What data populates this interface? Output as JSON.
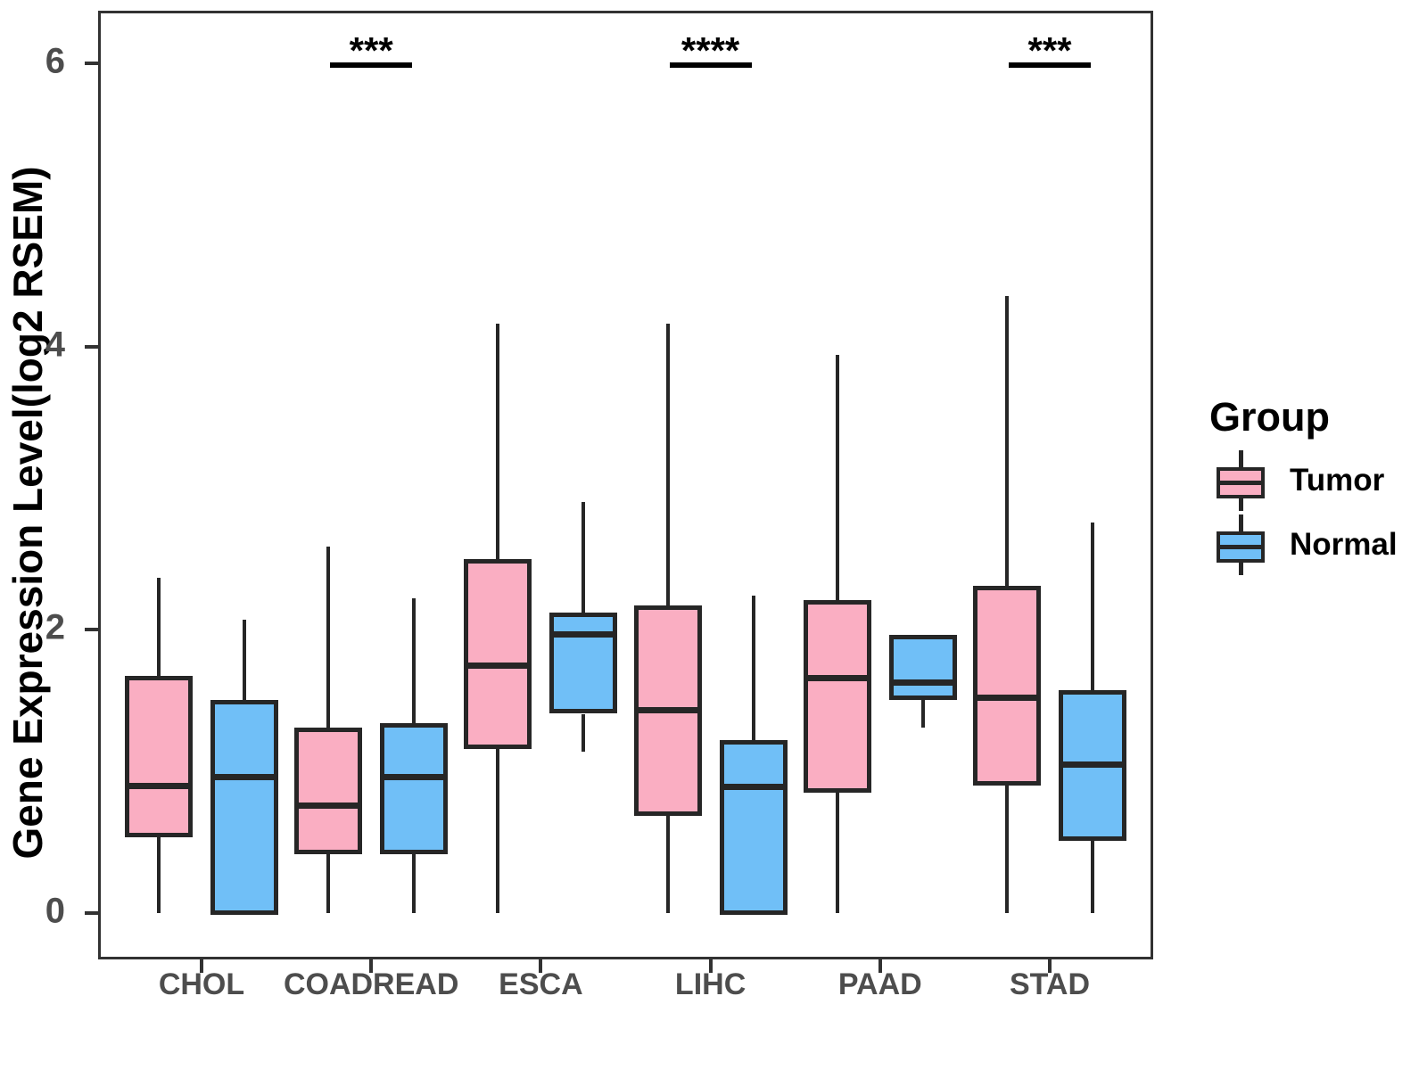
{
  "y_axis": {
    "label": "Gene Expression Level(log2 RSEM)"
  },
  "legend": {
    "title": "Group",
    "items": [
      {
        "label": "Tumor",
        "color": "#FAAEC2"
      },
      {
        "label": "Normal",
        "color": "#70BFF7"
      }
    ]
  },
  "chart_data": {
    "type": "boxplot",
    "title": "",
    "xlabel": "",
    "ylabel": "Gene Expression Level(log2 RSEM)",
    "ylim": [
      -0.3,
      6.35
    ],
    "yticks": [
      0,
      2,
      4,
      6
    ],
    "yticks_display": [
      "0",
      "2",
      "4",
      "6"
    ],
    "grid": false,
    "legend_position": "right",
    "categories": [
      "CHOL",
      "COADREAD",
      "ESCA",
      "LIHC",
      "PAAD",
      "STAD"
    ],
    "series": [
      {
        "name": "Tumor",
        "fill": "#FAAEC2",
        "stroke": "#262626",
        "boxes": [
          {
            "category": "CHOL",
            "low": 0.0,
            "q1": 0.55,
            "median": 0.9,
            "q3": 1.66,
            "high": 2.37
          },
          {
            "category": "COADREAD",
            "low": 0.0,
            "q1": 0.43,
            "median": 0.76,
            "q3": 1.3,
            "high": 2.59
          },
          {
            "category": "ESCA",
            "low": 0.0,
            "q1": 1.17,
            "median": 1.75,
            "q3": 2.49,
            "high": 4.16
          },
          {
            "category": "LIHC",
            "low": 0.0,
            "q1": 0.7,
            "median": 1.43,
            "q3": 2.16,
            "high": 4.16
          },
          {
            "category": "PAAD",
            "low": 0.0,
            "q1": 0.86,
            "median": 1.66,
            "q3": 2.2,
            "high": 3.94
          },
          {
            "category": "STAD",
            "low": 0.0,
            "q1": 0.91,
            "median": 1.52,
            "q3": 2.3,
            "high": 4.36
          }
        ]
      },
      {
        "name": "Normal",
        "fill": "#70BFF7",
        "stroke": "#262626",
        "boxes": [
          {
            "category": "CHOL",
            "low": 0.0,
            "q1": 0.0,
            "median": 0.96,
            "q3": 1.49,
            "high": 2.07
          },
          {
            "category": "COADREAD",
            "low": 0.0,
            "q1": 0.43,
            "median": 0.96,
            "q3": 1.33,
            "high": 2.22
          },
          {
            "category": "ESCA",
            "low": 1.14,
            "q1": 1.42,
            "median": 1.97,
            "q3": 2.11,
            "high": 2.9
          },
          {
            "category": "LIHC",
            "low": 0.0,
            "q1": 0.0,
            "median": 0.89,
            "q3": 1.21,
            "high": 2.24
          },
          {
            "category": "PAAD",
            "low": 1.31,
            "q1": 1.52,
            "median": 1.63,
            "q3": 1.95,
            "high": 1.95
          },
          {
            "category": "STAD",
            "low": 0.0,
            "q1": 0.52,
            "median": 1.05,
            "q3": 1.56,
            "high": 2.76
          }
        ]
      }
    ],
    "significance": [
      {
        "category": "COADREAD",
        "label": "***"
      },
      {
        "category": "LIHC",
        "label": "****"
      },
      {
        "category": "STAD",
        "label": "***"
      }
    ]
  }
}
